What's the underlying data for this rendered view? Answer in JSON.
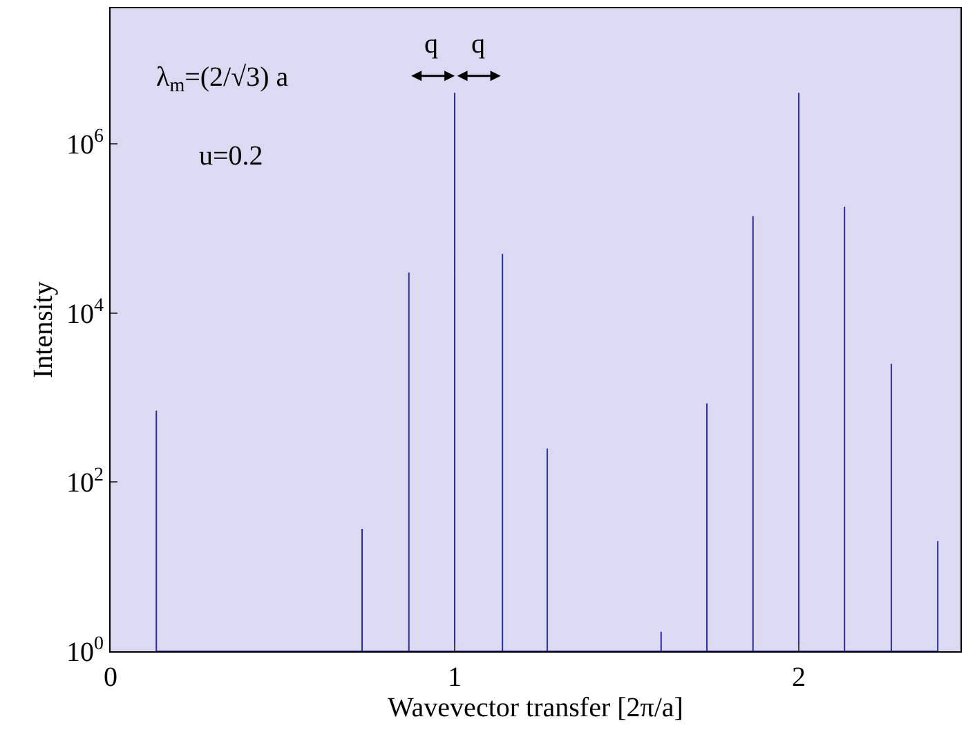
{
  "chart_data": {
    "type": "line",
    "xlabel": "Wavevector transfer [2π/a]",
    "ylabel": "Intensity",
    "x": [
      0.133,
      0.133,
      0.133,
      0.731,
      0.731,
      0.731,
      0.867,
      0.867,
      0.867,
      1.0,
      1.0,
      1.0,
      1.139,
      1.139,
      1.139,
      1.269,
      1.269,
      1.269,
      1.6,
      1.6,
      1.6,
      1.733,
      1.733,
      1.733,
      1.867,
      1.867,
      1.867,
      2.0,
      2.0,
      2.0,
      2.133,
      2.133,
      2.133,
      2.269,
      2.269,
      2.269,
      2.404,
      2.404,
      2.404
    ],
    "series": [
      {
        "color": "#2b2ba8",
        "values": [
          1,
          700,
          1,
          1,
          28,
          1,
          1,
          30000,
          1,
          1,
          4000000,
          1,
          1,
          50000,
          1,
          1,
          250,
          1,
          1,
          1.7,
          1,
          1,
          850,
          1,
          1,
          140000,
          1,
          1,
          4000000,
          1,
          1,
          180000,
          1,
          1,
          2500,
          1,
          1,
          20,
          1
        ]
      }
    ],
    "log": "y",
    "xlim": [
      0,
      2.47
    ],
    "ylim": [
      1,
      40000000
    ],
    "xticks": [
      0,
      1,
      2
    ],
    "yticks": [
      {
        "value": 1,
        "label": "10$^{0}$"
      },
      {
        "value": 100,
        "label": "10$^{2}$"
      },
      {
        "value": 10000,
        "label": "10$^{4}$"
      },
      {
        "value": 1000000,
        "label": "10$^{6}$"
      }
    ],
    "marker": "none",
    "line_style": "solid",
    "annotations": [
      "λ$_{m}$=(2/√3) a",
      "u=0.2",
      "q",
      "q"
    ]
  }
}
